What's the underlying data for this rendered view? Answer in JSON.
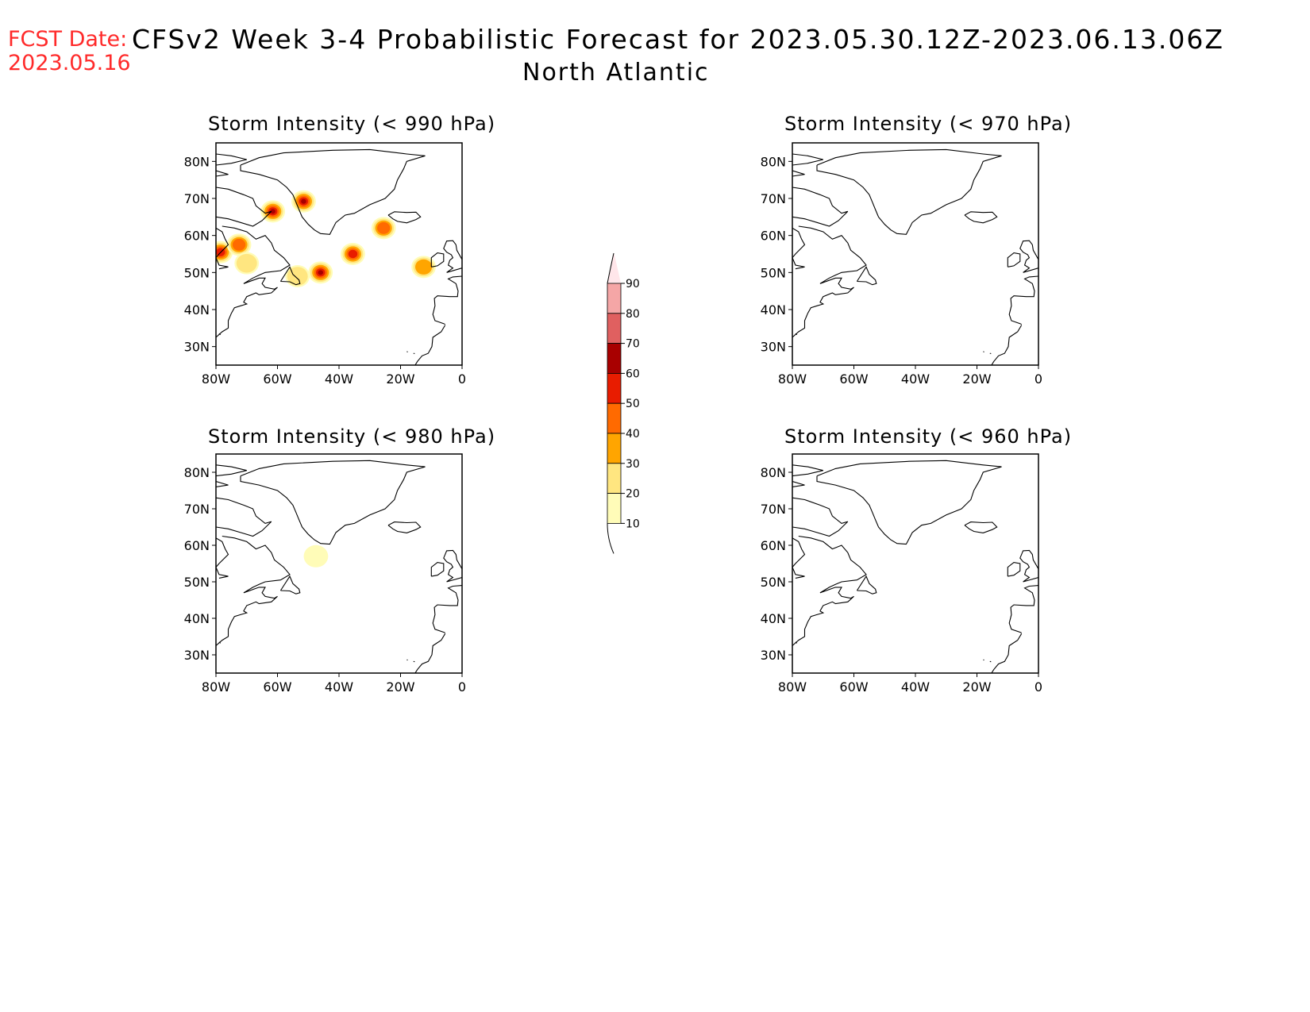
{
  "header": {
    "fcst_label": "FCST Date:",
    "fcst_date": "2023.05.16",
    "title": "CFSv2 Week 3-4 Probabilistic Forecast for 2023.05.30.12Z-2023.06.13.06Z",
    "region": "North Atlantic"
  },
  "panels": [
    {
      "title": "Storm Intensity (< 990 hPa)"
    },
    {
      "title": "Storm Intensity (< 970 hPa)"
    },
    {
      "title": "Storm Intensity (< 980 hPa)"
    },
    {
      "title": "Storm Intensity (< 960 hPa)"
    }
  ],
  "axes": {
    "lat_labels": [
      "80N",
      "70N",
      "60N",
      "50N",
      "40N",
      "30N"
    ],
    "lon_labels": [
      "80W",
      "60W",
      "40W",
      "20W",
      "0"
    ]
  },
  "colorbar": {
    "labels": [
      "10",
      "20",
      "30",
      "40",
      "50",
      "60",
      "70",
      "80",
      "90"
    ],
    "colors": [
      "#fffcb8",
      "#ffe680",
      "#ffa500",
      "#ff6a00",
      "#e81c00",
      "#a80000",
      "#e06060",
      "#f5a6a6",
      "#ffe6ea"
    ]
  },
  "colors": {
    "fcst": "#ff2a2a",
    "title": "#000000"
  },
  "chart_data": {
    "type": "heatmap",
    "x_range": [
      -80,
      0
    ],
    "y_range": [
      25,
      85
    ],
    "probability_spots_990hPa": [
      {
        "lon": -51.5,
        "lat": 69.2,
        "level": 60
      },
      {
        "lon": -61.5,
        "lat": 66.5,
        "level": 60
      },
      {
        "lon": -25.5,
        "lat": 62.0,
        "level": 40
      },
      {
        "lon": -78.5,
        "lat": 55.5,
        "level": 50
      },
      {
        "lon": -72.5,
        "lat": 57.5,
        "level": 40
      },
      {
        "lon": -70.0,
        "lat": 52.5,
        "level": 20
      },
      {
        "lon": -46.0,
        "lat": 50.0,
        "level": 60
      },
      {
        "lon": -35.5,
        "lat": 55.0,
        "level": 50
      },
      {
        "lon": -53.5,
        "lat": 49.0,
        "level": 20
      },
      {
        "lon": -12.5,
        "lat": 51.5,
        "level": 30
      }
    ],
    "probability_spots_980hPa": [
      {
        "lon": -47.5,
        "lat": 57.0,
        "level": 10
      }
    ],
    "probability_spots_970hPa": [],
    "probability_spots_960hPa": []
  }
}
